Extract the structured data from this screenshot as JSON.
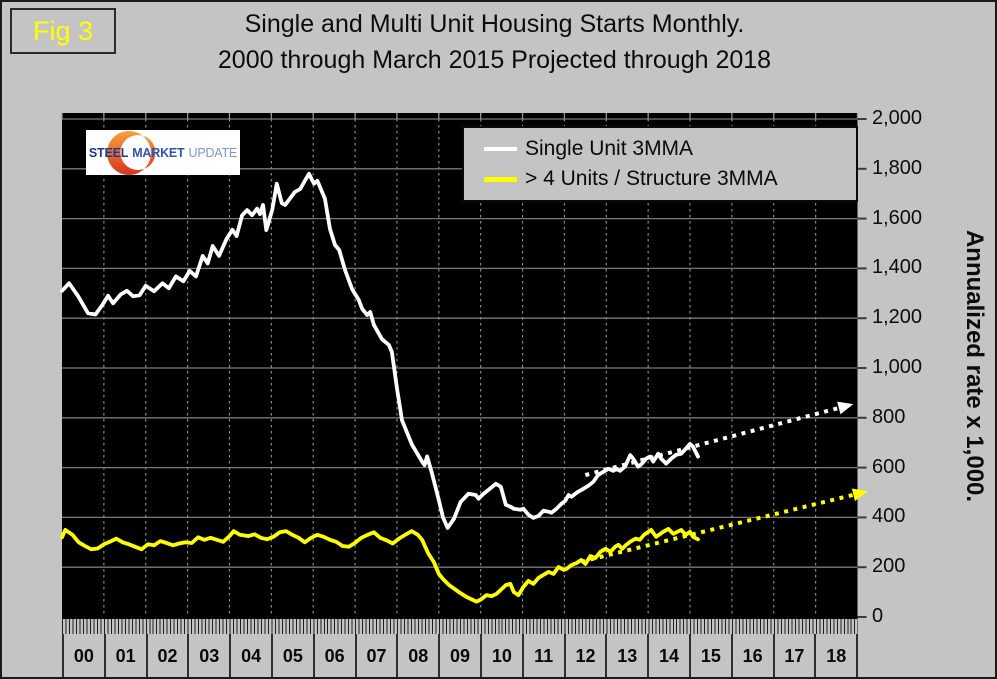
{
  "fig_label": "Fig 3",
  "title": "Single and Multi Unit Housing Starts Monthly.",
  "subtitle": "2000 through March 2015 Projected through 2018",
  "logo": {
    "word1": "STEEL",
    "word2": "MARKET",
    "word3": "UPDATE"
  },
  "legend": [
    {
      "label": "Single Unit 3MMA",
      "color": "#ffffff"
    },
    {
      "label": "> 4 Units / Structure 3MMA",
      "color": "#ffff00"
    }
  ],
  "colors": {
    "background": "#c4c4c4",
    "plot_background": "#000000",
    "single_unit": "#ffffff",
    "multi_unit": "#ffff00",
    "grid_horizontal": "#7a7a7a",
    "grid_vertical": "#8a8a8a",
    "fig_label": "#ffff00",
    "axis_tick": "#3a3a3a",
    "logo_orange_top": "#f5a23c",
    "logo_orange_bottom": "#d9341f"
  },
  "chart_data": {
    "type": "line",
    "title": "Single and Multi Unit Housing Starts Monthly.",
    "subtitle": "2000 through March 2015 Projected through 2018",
    "xlabel": "",
    "ylabel": "Annualized rate x 1,000.",
    "xlim": [
      2000,
      2019
    ],
    "ylim": [
      0,
      2000
    ],
    "grid": true,
    "legend_position": "top-right",
    "y_axis": {
      "title": "Annualized rate x 1,000.",
      "tick_values": [
        0,
        200,
        400,
        600,
        800,
        1000,
        1200,
        1400,
        1600,
        1800,
        2000
      ],
      "tick_labels": [
        "0",
        "200",
        "400",
        "600",
        "800",
        "1,000",
        "1,200",
        "1,400",
        "1,600",
        "1,800",
        "2,000"
      ]
    },
    "x_axis": {
      "tick_labels": [
        "00",
        "01",
        "02",
        "03",
        "04",
        "05",
        "06",
        "07",
        "08",
        "09",
        "10",
        "11",
        "12",
        "13",
        "14",
        "15",
        "16",
        "17",
        "18"
      ],
      "minor_ticks": "monthly"
    },
    "series": [
      {
        "name": "Single Unit 3MMA",
        "color": "#ffffff",
        "style": "solid",
        "points": [
          [
            2000.0,
            1310
          ],
          [
            2000.17,
            1340
          ],
          [
            2000.38,
            1290
          ],
          [
            2000.62,
            1220
          ],
          [
            2000.8,
            1215
          ],
          [
            2000.95,
            1250
          ],
          [
            2001.1,
            1290
          ],
          [
            2001.22,
            1260
          ],
          [
            2001.4,
            1295
          ],
          [
            2001.55,
            1310
          ],
          [
            2001.7,
            1288
          ],
          [
            2001.85,
            1292
          ],
          [
            2002.0,
            1330
          ],
          [
            2002.2,
            1308
          ],
          [
            2002.4,
            1340
          ],
          [
            2002.55,
            1320
          ],
          [
            2002.72,
            1368
          ],
          [
            2002.9,
            1348
          ],
          [
            2003.05,
            1390
          ],
          [
            2003.2,
            1368
          ],
          [
            2003.36,
            1450
          ],
          [
            2003.48,
            1420
          ],
          [
            2003.6,
            1490
          ],
          [
            2003.75,
            1450
          ],
          [
            2003.93,
            1518
          ],
          [
            2004.07,
            1555
          ],
          [
            2004.17,
            1530
          ],
          [
            2004.3,
            1612
          ],
          [
            2004.42,
            1634
          ],
          [
            2004.54,
            1614
          ],
          [
            2004.66,
            1640
          ],
          [
            2004.73,
            1618
          ],
          [
            2004.8,
            1655
          ],
          [
            2004.88,
            1554
          ],
          [
            2004.96,
            1600
          ],
          [
            2005.02,
            1635
          ],
          [
            2005.13,
            1740
          ],
          [
            2005.25,
            1662
          ],
          [
            2005.33,
            1655
          ],
          [
            2005.44,
            1680
          ],
          [
            2005.56,
            1707
          ],
          [
            2005.69,
            1719
          ],
          [
            2005.81,
            1755
          ],
          [
            2005.9,
            1780
          ],
          [
            2006.02,
            1740
          ],
          [
            2006.1,
            1752
          ],
          [
            2006.28,
            1680
          ],
          [
            2006.4,
            1558
          ],
          [
            2006.52,
            1494
          ],
          [
            2006.62,
            1474
          ],
          [
            2006.76,
            1394
          ],
          [
            2006.93,
            1317
          ],
          [
            2007.09,
            1273
          ],
          [
            2007.17,
            1237
          ],
          [
            2007.29,
            1213
          ],
          [
            2007.36,
            1225
          ],
          [
            2007.45,
            1173
          ],
          [
            2007.64,
            1116
          ],
          [
            2007.81,
            1092
          ],
          [
            2007.88,
            1064
          ],
          [
            2008.0,
            920
          ],
          [
            2008.12,
            790
          ],
          [
            2008.36,
            692
          ],
          [
            2008.6,
            624
          ],
          [
            2008.66,
            610
          ],
          [
            2008.72,
            645
          ],
          [
            2008.84,
            575
          ],
          [
            2009.0,
            470
          ],
          [
            2009.1,
            400
          ],
          [
            2009.21,
            358
          ],
          [
            2009.36,
            394
          ],
          [
            2009.52,
            462
          ],
          [
            2009.71,
            495
          ],
          [
            2009.88,
            490
          ],
          [
            2009.95,
            475
          ],
          [
            2010.07,
            495
          ],
          [
            2010.19,
            511
          ],
          [
            2010.36,
            535
          ],
          [
            2010.48,
            523
          ],
          [
            2010.6,
            451
          ],
          [
            2010.71,
            443
          ],
          [
            2010.79,
            435
          ],
          [
            2010.95,
            431
          ],
          [
            2011.02,
            435
          ],
          [
            2011.14,
            411
          ],
          [
            2011.26,
            398
          ],
          [
            2011.38,
            406
          ],
          [
            2011.5,
            427
          ],
          [
            2011.62,
            423
          ],
          [
            2011.69,
            419
          ],
          [
            2011.81,
            435
          ],
          [
            2011.93,
            455
          ],
          [
            2012.02,
            467
          ],
          [
            2012.1,
            490
          ],
          [
            2012.17,
            483
          ],
          [
            2012.29,
            499
          ],
          [
            2012.45,
            515
          ],
          [
            2012.57,
            527
          ],
          [
            2012.69,
            543
          ],
          [
            2012.81,
            571
          ],
          [
            2012.93,
            583
          ],
          [
            2013.05,
            595
          ],
          [
            2013.17,
            587
          ],
          [
            2013.24,
            595
          ],
          [
            2013.33,
            587
          ],
          [
            2013.45,
            604
          ],
          [
            2013.57,
            650
          ],
          [
            2013.64,
            636
          ],
          [
            2013.76,
            604
          ],
          [
            2013.83,
            612
          ],
          [
            2013.95,
            636
          ],
          [
            2014.05,
            644
          ],
          [
            2014.12,
            624
          ],
          [
            2014.24,
            656
          ],
          [
            2014.31,
            636
          ],
          [
            2014.43,
            616
          ],
          [
            2014.55,
            636
          ],
          [
            2014.67,
            652
          ],
          [
            2014.79,
            656
          ],
          [
            2014.9,
            676
          ],
          [
            2015.0,
            695
          ],
          [
            2015.07,
            684
          ],
          [
            2015.19,
            644
          ]
        ]
      },
      {
        "name": "> 4 Units / Structure 3MMA",
        "color": "#ffff00",
        "style": "solid",
        "points": [
          [
            2000.0,
            320
          ],
          [
            2000.08,
            350
          ],
          [
            2000.25,
            330
          ],
          [
            2000.4,
            300
          ],
          [
            2000.55,
            285
          ],
          [
            2000.7,
            272
          ],
          [
            2000.85,
            275
          ],
          [
            2001.0,
            292
          ],
          [
            2001.15,
            303
          ],
          [
            2001.3,
            315
          ],
          [
            2001.45,
            300
          ],
          [
            2001.6,
            292
          ],
          [
            2001.75,
            282
          ],
          [
            2001.9,
            272
          ],
          [
            2002.05,
            292
          ],
          [
            2002.2,
            288
          ],
          [
            2002.35,
            305
          ],
          [
            2002.5,
            297
          ],
          [
            2002.65,
            288
          ],
          [
            2002.8,
            295
          ],
          [
            2002.95,
            300
          ],
          [
            2003.1,
            297
          ],
          [
            2003.25,
            320
          ],
          [
            2003.4,
            310
          ],
          [
            2003.55,
            318
          ],
          [
            2003.7,
            310
          ],
          [
            2003.85,
            302
          ],
          [
            2004.0,
            325
          ],
          [
            2004.1,
            345
          ],
          [
            2004.25,
            330
          ],
          [
            2004.45,
            325
          ],
          [
            2004.6,
            332
          ],
          [
            2004.75,
            318
          ],
          [
            2004.9,
            312
          ],
          [
            2005.05,
            322
          ],
          [
            2005.2,
            340
          ],
          [
            2005.35,
            345
          ],
          [
            2005.5,
            330
          ],
          [
            2005.65,
            318
          ],
          [
            2005.8,
            300
          ],
          [
            2005.95,
            318
          ],
          [
            2006.1,
            330
          ],
          [
            2006.25,
            322
          ],
          [
            2006.4,
            310
          ],
          [
            2006.55,
            302
          ],
          [
            2006.7,
            285
          ],
          [
            2006.85,
            282
          ],
          [
            2007.0,
            298
          ],
          [
            2007.15,
            318
          ],
          [
            2007.3,
            330
          ],
          [
            2007.45,
            340
          ],
          [
            2007.6,
            318
          ],
          [
            2007.75,
            308
          ],
          [
            2007.9,
            295
          ],
          [
            2008.05,
            315
          ],
          [
            2008.2,
            330
          ],
          [
            2008.35,
            345
          ],
          [
            2008.5,
            330
          ],
          [
            2008.6,
            310
          ],
          [
            2008.75,
            255
          ],
          [
            2008.88,
            221
          ],
          [
            2009.0,
            173
          ],
          [
            2009.12,
            149
          ],
          [
            2009.24,
            129
          ],
          [
            2009.48,
            100
          ],
          [
            2009.67,
            80
          ],
          [
            2009.9,
            62
          ],
          [
            2010.0,
            70
          ],
          [
            2010.14,
            88
          ],
          [
            2010.26,
            84
          ],
          [
            2010.38,
            93
          ],
          [
            2010.6,
            128
          ],
          [
            2010.71,
            133
          ],
          [
            2010.79,
            100
          ],
          [
            2010.9,
            88
          ],
          [
            2011.02,
            121
          ],
          [
            2011.14,
            145
          ],
          [
            2011.26,
            133
          ],
          [
            2011.38,
            157
          ],
          [
            2011.5,
            169
          ],
          [
            2011.62,
            181
          ],
          [
            2011.74,
            173
          ],
          [
            2011.86,
            201
          ],
          [
            2011.98,
            189
          ],
          [
            2012.05,
            193
          ],
          [
            2012.17,
            209
          ],
          [
            2012.29,
            217
          ],
          [
            2012.4,
            229
          ],
          [
            2012.5,
            213
          ],
          [
            2012.62,
            245
          ],
          [
            2012.74,
            237
          ],
          [
            2012.86,
            262
          ],
          [
            2012.98,
            274
          ],
          [
            2013.1,
            262
          ],
          [
            2013.21,
            282
          ],
          [
            2013.29,
            290
          ],
          [
            2013.38,
            274
          ],
          [
            2013.45,
            286
          ],
          [
            2013.57,
            302
          ],
          [
            2013.7,
            315
          ],
          [
            2013.8,
            310
          ],
          [
            2013.9,
            330
          ],
          [
            2014.07,
            350
          ],
          [
            2014.19,
            322
          ],
          [
            2014.36,
            342
          ],
          [
            2014.48,
            354
          ],
          [
            2014.6,
            334
          ],
          [
            2014.79,
            350
          ],
          [
            2014.9,
            330
          ],
          [
            2015.0,
            342
          ],
          [
            2015.07,
            322
          ],
          [
            2015.19,
            312
          ]
        ]
      },
      {
        "name": "Single Unit projection",
        "color": "#ffffff",
        "style": "dotted-arrow",
        "points": [
          [
            2012.5,
            570
          ],
          [
            2018.9,
            855
          ]
        ]
      },
      {
        "name": "Multi Unit projection",
        "color": "#ffff00",
        "style": "dotted-arrow",
        "points": [
          [
            2012.4,
            222
          ],
          [
            2019.25,
            505
          ]
        ]
      }
    ]
  }
}
